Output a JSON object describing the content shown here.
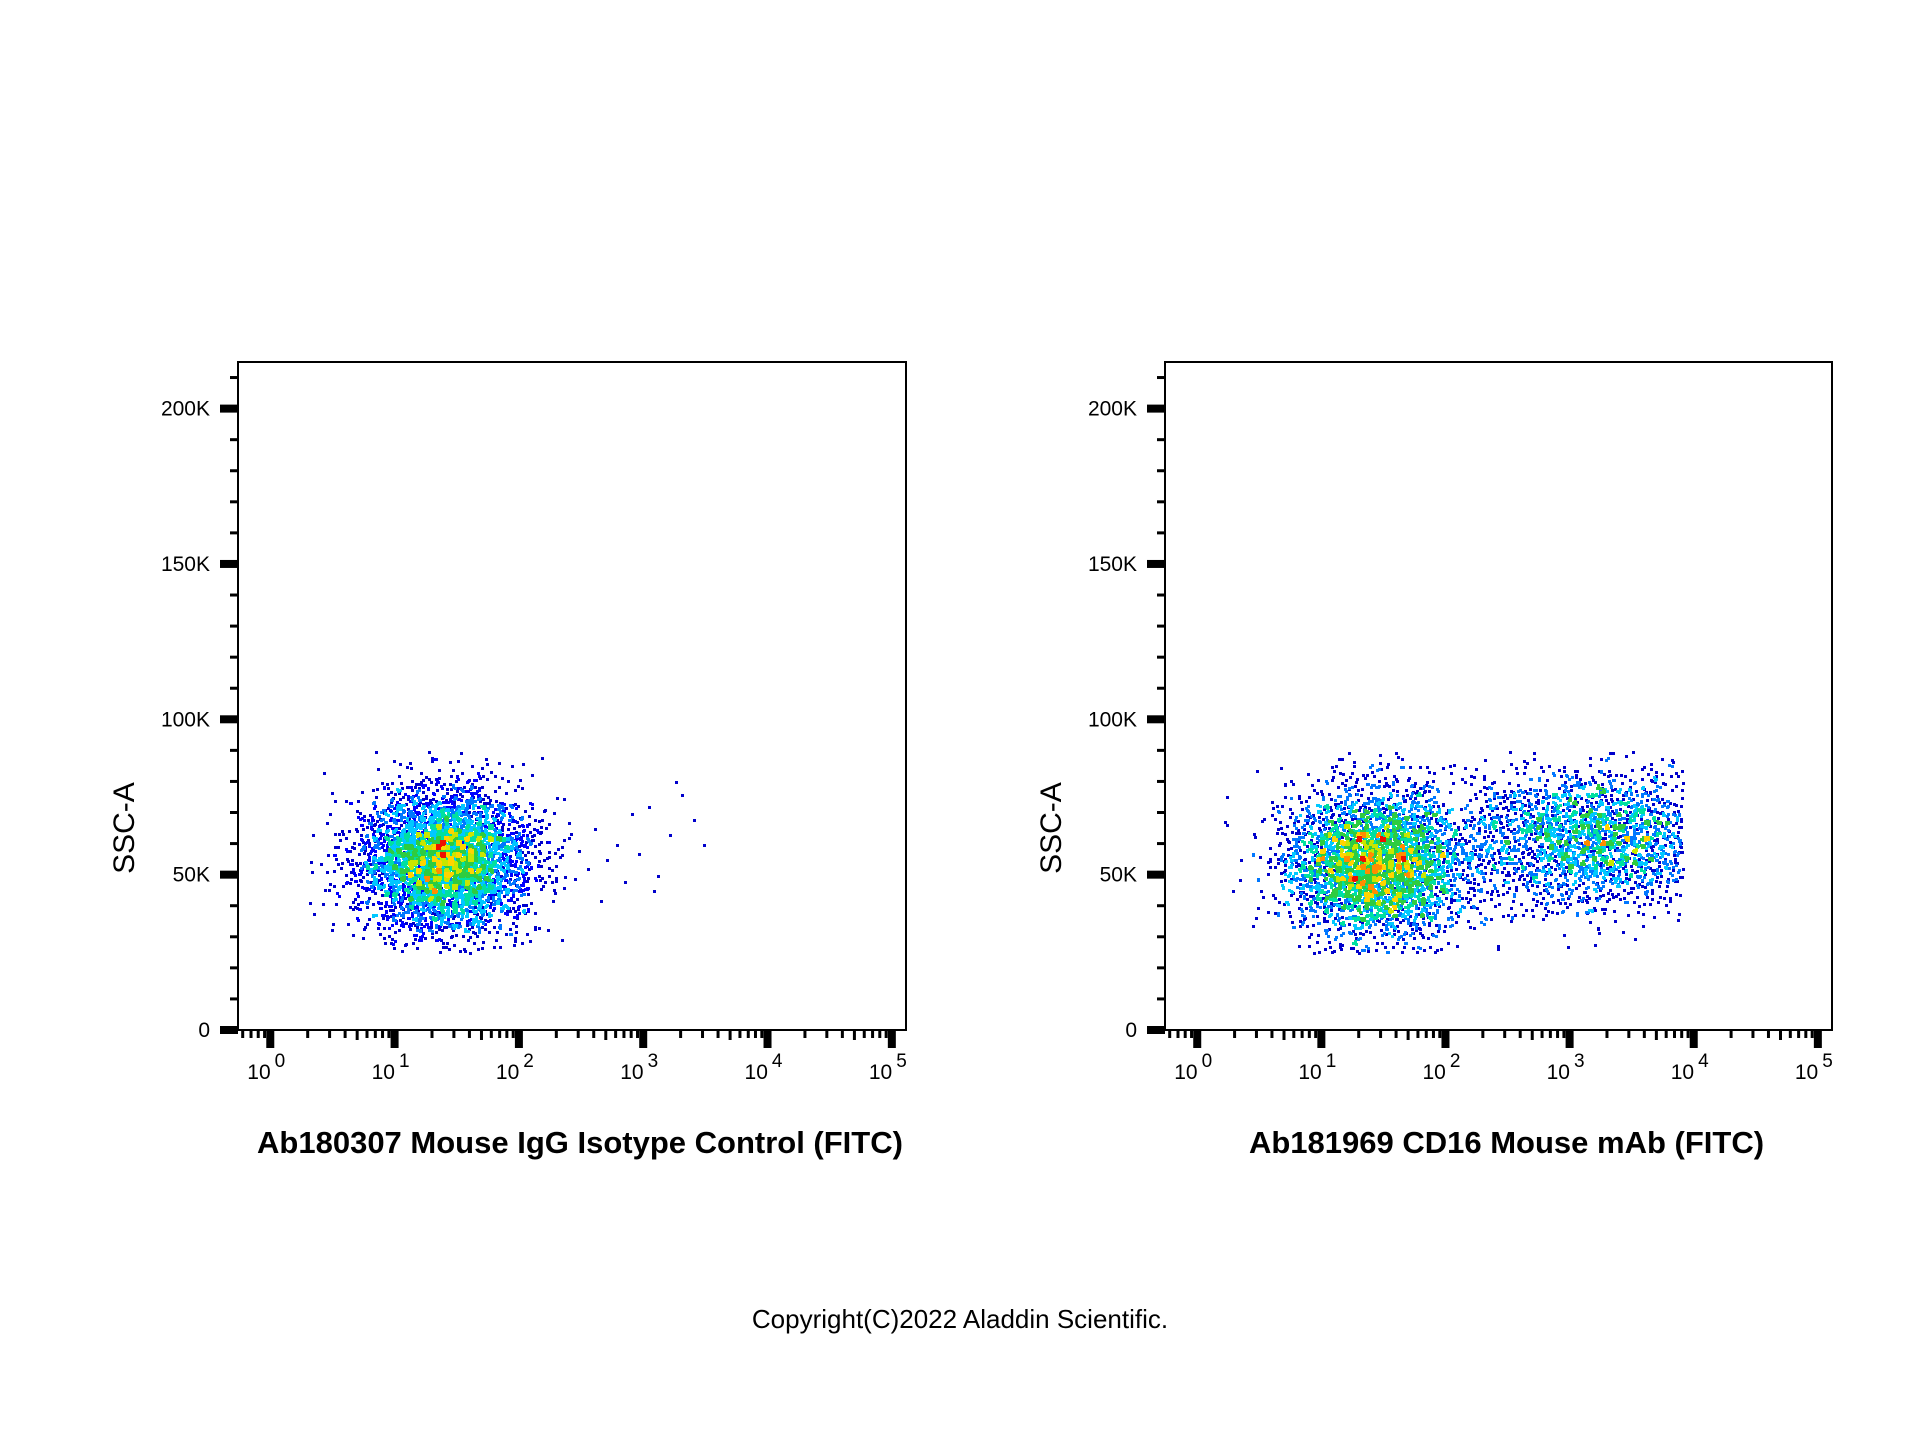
{
  "chart_data": [
    {
      "type": "scatter",
      "subtype": "flow-cytometry-density-dot-plot",
      "title": "",
      "xlabel": "Ab180307 Mouse IgG Isotype Control (FITC)",
      "ylabel": "SSC-A",
      "xscale": "log",
      "xlim": [
        0.55,
        130000
      ],
      "ylim": [
        0,
        215000
      ],
      "x_ticks": [
        {
          "base": "10",
          "exp": "0"
        },
        {
          "base": "10",
          "exp": "1"
        },
        {
          "base": "10",
          "exp": "2"
        },
        {
          "base": "10",
          "exp": "3"
        },
        {
          "base": "10",
          "exp": "4"
        },
        {
          "base": "10",
          "exp": "5"
        }
      ],
      "y_ticks": [
        {
          "value": 0,
          "label": "0"
        },
        {
          "value": 50000,
          "label": "50K"
        },
        {
          "value": 100000,
          "label": "100K"
        },
        {
          "value": 150000,
          "label": "150K"
        },
        {
          "value": 200000,
          "label": "200K"
        }
      ],
      "populations": [
        {
          "center_x": 25,
          "center_y": 55000,
          "x_spread_log10": 0.33,
          "y_spread": 11000,
          "x_range": [
            2,
            300
          ],
          "y_range": [
            25000,
            90000
          ],
          "events": 5200
        }
      ],
      "sparse_events": [
        [
          150,
          68000
        ],
        [
          200,
          75000
        ],
        [
          250,
          62000
        ],
        [
          300,
          58000
        ],
        [
          350,
          52000
        ],
        [
          400,
          65000
        ],
        [
          500,
          55000
        ],
        [
          600,
          60000
        ],
        [
          700,
          48000
        ],
        [
          900,
          57000
        ],
        [
          1100,
          72000
        ],
        [
          1300,
          50000
        ],
        [
          1600,
          63000
        ],
        [
          1800,
          80000
        ],
        [
          2000,
          76000
        ],
        [
          2500,
          68000
        ],
        [
          1200,
          45000
        ],
        [
          800,
          70000
        ],
        [
          450,
          42000
        ],
        [
          3000,
          60000
        ]
      ],
      "colormap": [
        "#0000cc",
        "#0000ff",
        "#0077ff",
        "#00c8ff",
        "#00e0a0",
        "#2ecc40",
        "#c8e600",
        "#ffd400",
        "#ff8c00",
        "#ee1100"
      ]
    },
    {
      "type": "scatter",
      "subtype": "flow-cytometry-density-dot-plot",
      "title": "",
      "xlabel": "Ab181969 CD16 Mouse mAb (FITC)",
      "ylabel": "SSC-A",
      "xscale": "log",
      "xlim": [
        0.55,
        130000
      ],
      "ylim": [
        0,
        215000
      ],
      "x_ticks": [
        {
          "base": "10",
          "exp": "0"
        },
        {
          "base": "10",
          "exp": "1"
        },
        {
          "base": "10",
          "exp": "2"
        },
        {
          "base": "10",
          "exp": "3"
        },
        {
          "base": "10",
          "exp": "4"
        },
        {
          "base": "10",
          "exp": "5"
        }
      ],
      "y_ticks": [
        {
          "value": 0,
          "label": "0"
        },
        {
          "value": 50000,
          "label": "50K"
        },
        {
          "value": 100000,
          "label": "100K"
        },
        {
          "value": 150000,
          "label": "150K"
        },
        {
          "value": 200000,
          "label": "200K"
        }
      ],
      "populations": [
        {
          "center_x": 28,
          "center_y": 54000,
          "x_spread_log10": 0.36,
          "y_spread": 12000,
          "x_range": [
            1.5,
            400
          ],
          "y_range": [
            25000,
            90000
          ],
          "events": 4200
        },
        {
          "center_x": 1500,
          "center_y": 62000,
          "x_spread_log10": 0.55,
          "y_spread": 11000,
          "x_range": [
            60,
            8000
          ],
          "y_range": [
            25000,
            90000
          ],
          "events": 2600
        }
      ],
      "sparse_events": [],
      "colormap": [
        "#0000cc",
        "#0000ff",
        "#0077ff",
        "#00c8ff",
        "#00e0a0",
        "#2ecc40",
        "#c8e600",
        "#ffd400",
        "#ff8c00",
        "#ee1100"
      ]
    }
  ],
  "footer": {
    "copyright": "Copyright(C)2022 Aladdin Scientific."
  }
}
